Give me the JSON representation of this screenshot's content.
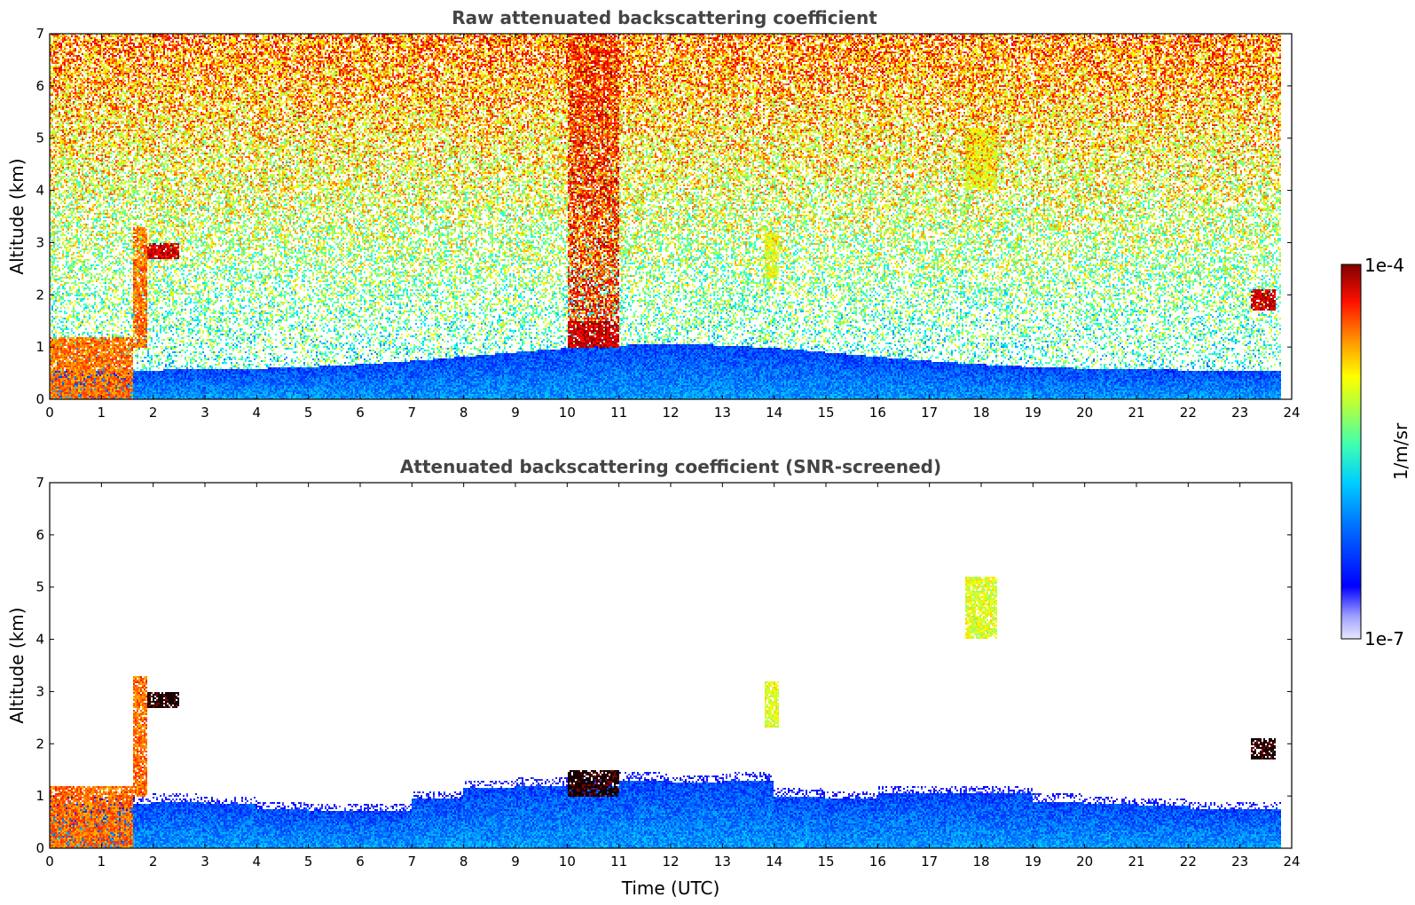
{
  "colors": {
    "colormap": [
      "#e8e8ff",
      "#b0b0ff",
      "#6060ff",
      "#0000ff",
      "#0040ff",
      "#0080ff",
      "#00c0ff",
      "#00ffff",
      "#40ffc0",
      "#80ff80",
      "#c0ff40",
      "#ffff00",
      "#ffc000",
      "#ff8000",
      "#ff4000",
      "#ff0000",
      "#c00000",
      "#800000"
    ],
    "axes": "#000000",
    "title": "#444444"
  },
  "chart_data": [
    {
      "type": "heatmap",
      "title": "Raw attenuated backscattering coefficient",
      "ylabel": "Altitude (km)",
      "xlabel": "",
      "xlim": [
        0,
        24
      ],
      "ylim": [
        0,
        7
      ],
      "x_ticks": [
        "0",
        "1",
        "2",
        "3",
        "4",
        "5",
        "6",
        "7",
        "8",
        "9",
        "10",
        "11",
        "12",
        "13",
        "14",
        "15",
        "16",
        "17",
        "18",
        "19",
        "20",
        "21",
        "22",
        "23",
        "24"
      ],
      "y_ticks": [
        "0",
        "1",
        "2",
        "3",
        "4",
        "5",
        "6",
        "7"
      ],
      "data_end_hour": 23.8,
      "features": [
        {
          "x": [
            0,
            1.6
          ],
          "y": [
            0,
            1.2
          ],
          "level": "high"
        },
        {
          "x": [
            1.6,
            1.9
          ],
          "y": [
            1.0,
            3.3
          ],
          "level": "high"
        },
        {
          "x": [
            1.9,
            2.5
          ],
          "y": [
            2.7,
            3.0
          ],
          "level": "very high"
        },
        {
          "x": [
            10.0,
            11.0
          ],
          "y": [
            1.0,
            1.5
          ],
          "level": "very high"
        },
        {
          "x": [
            10.0,
            11.0
          ],
          "y": [
            1.5,
            7.0
          ],
          "level": "noisy high"
        },
        {
          "x": [
            17.7,
            18.3
          ],
          "y": [
            4.0,
            5.2
          ],
          "level": "medium"
        },
        {
          "x": [
            13.8,
            14.1
          ],
          "y": [
            2.3,
            3.2
          ],
          "level": "medium"
        },
        {
          "x": [
            23.2,
            23.7
          ],
          "y": [
            1.7,
            2.1
          ],
          "level": "very high"
        }
      ]
    },
    {
      "type": "heatmap",
      "title": "Attenuated backscattering coefficient (SNR-screened)",
      "ylabel": "Altitude (km)",
      "xlabel": "Time (UTC)",
      "xlim": [
        0,
        24
      ],
      "ylim": [
        0,
        7
      ],
      "x_ticks": [
        "0",
        "1",
        "2",
        "3",
        "4",
        "5",
        "6",
        "7",
        "8",
        "9",
        "10",
        "11",
        "12",
        "13",
        "14",
        "15",
        "16",
        "17",
        "18",
        "19",
        "20",
        "21",
        "22",
        "23",
        "24"
      ],
      "y_ticks": [
        "0",
        "1",
        "2",
        "3",
        "4",
        "5",
        "6",
        "7"
      ],
      "data_end_hour": 23.8,
      "boundary_layer_top_km": [
        0.85,
        0.85,
        0.9,
        0.85,
        0.75,
        0.7,
        0.7,
        0.95,
        1.15,
        1.2,
        1.2,
        1.3,
        1.25,
        1.3,
        1.0,
        0.95,
        1.05,
        1.05,
        1.05,
        0.9,
        0.85,
        0.8,
        0.75,
        0.75
      ],
      "features": [
        {
          "x": [
            0,
            1.6
          ],
          "y": [
            0,
            1.2
          ],
          "level": "high"
        },
        {
          "x": [
            1.6,
            1.9
          ],
          "y": [
            1.0,
            3.3
          ],
          "level": "high"
        },
        {
          "x": [
            1.9,
            2.5
          ],
          "y": [
            2.7,
            3.0
          ],
          "level": "saturated"
        },
        {
          "x": [
            10.0,
            11.0
          ],
          "y": [
            1.0,
            1.5
          ],
          "level": "saturated"
        },
        {
          "x": [
            17.7,
            18.3
          ],
          "y": [
            4.0,
            5.2
          ],
          "level": "medium"
        },
        {
          "x": [
            13.8,
            14.1
          ],
          "y": [
            2.3,
            3.2
          ],
          "level": "medium"
        },
        {
          "x": [
            23.2,
            23.7
          ],
          "y": [
            1.7,
            2.1
          ],
          "level": "saturated"
        }
      ]
    }
  ],
  "colorbar": {
    "max_label": "1e-4",
    "min_label": "1e-7",
    "unit_label": "1/m/sr",
    "range": [
      1e-07,
      0.0001
    ],
    "scale": "log"
  }
}
